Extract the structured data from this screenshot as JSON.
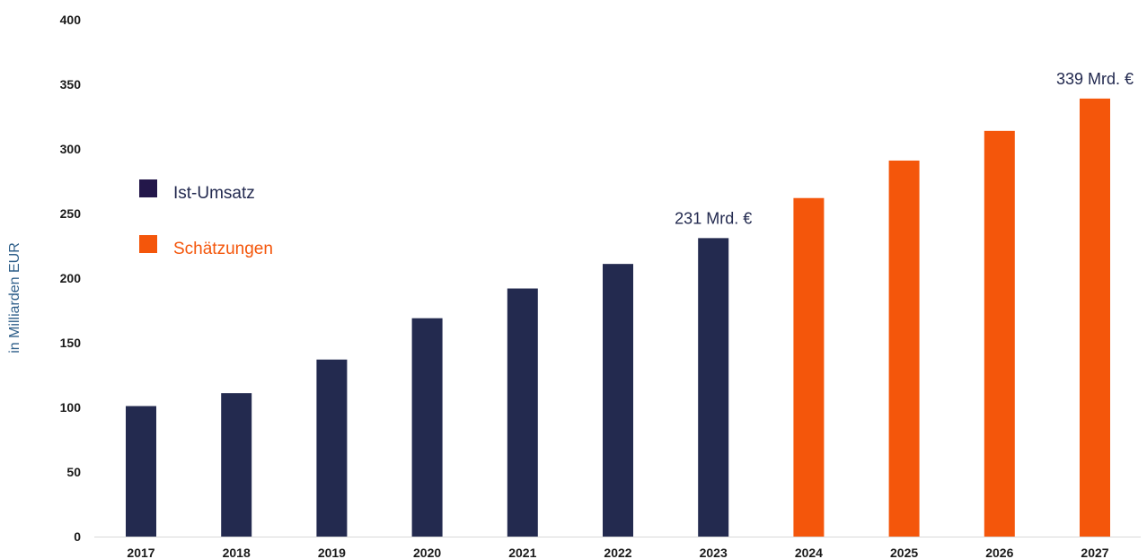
{
  "chart_data": {
    "type": "bar",
    "ylabel": "in Milliarden EUR",
    "xlabel": "",
    "ylim": [
      0,
      400
    ],
    "yticks": [
      "0",
      "50",
      "100",
      "150",
      "200",
      "250",
      "300",
      "350",
      "400"
    ],
    "categories": [
      "2017",
      "2018",
      "2019",
      "2020",
      "2021",
      "2022",
      "2023",
      "2024",
      "2025",
      "2026",
      "2027"
    ],
    "series": [
      {
        "name": "Ist-Umsatz",
        "color": "#232a4f",
        "values": [
          101,
          111,
          137,
          169,
          192,
          211,
          231,
          null,
          null,
          null,
          null
        ]
      },
      {
        "name": "Schätzungen",
        "color": "#f4560b",
        "values": [
          null,
          null,
          null,
          null,
          null,
          null,
          null,
          262,
          291,
          314,
          339
        ]
      }
    ],
    "legend": [
      {
        "label": "Ist-Umsatz",
        "swatch_color": "#23174a",
        "text_color": "#22294f"
      },
      {
        "label": "Schätzungen",
        "swatch_color": "#f4560b",
        "text_color": "#f4560b"
      }
    ],
    "legend_position": "left",
    "grid": false,
    "annotations": [
      {
        "category": "2023",
        "text": "231 Mrd. €"
      },
      {
        "category": "2027",
        "text": "339 Mrd. €"
      }
    ]
  }
}
